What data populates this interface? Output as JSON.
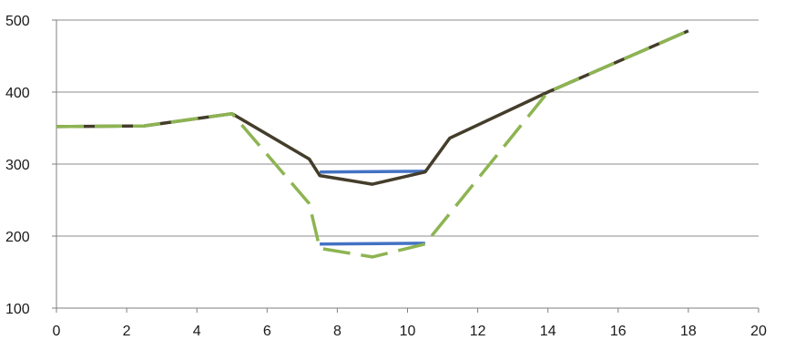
{
  "chart_data": {
    "type": "line",
    "title": "",
    "xlabel": "",
    "ylabel": "",
    "xlim": [
      0,
      20
    ],
    "ylim": [
      100,
      500
    ],
    "x_ticks": [
      "0",
      "2",
      "4",
      "6",
      "8",
      "10",
      "12",
      "14",
      "16",
      "18",
      "20"
    ],
    "y_ticks": [
      "100",
      "200",
      "300",
      "400",
      "500"
    ],
    "grid": "horizontal",
    "legend": "none",
    "series": [
      {
        "color": "#4472c4",
        "style": "solid",
        "points": [
          [
            7.5,
            289
          ],
          [
            10.5,
            290
          ]
        ]
      },
      {
        "color": "#4472c4",
        "style": "solid",
        "points": [
          [
            7.5,
            189
          ],
          [
            10.5,
            190
          ]
        ]
      },
      {
        "color": "#443d2b",
        "style": "solid",
        "points": [
          [
            0,
            352
          ],
          [
            2.5,
            353
          ],
          [
            5,
            370
          ],
          [
            7.2,
            307
          ],
          [
            7.5,
            284
          ],
          [
            9,
            272
          ],
          [
            10.5,
            289
          ],
          [
            11.2,
            336
          ],
          [
            14,
            400
          ],
          [
            18,
            485
          ]
        ]
      },
      {
        "color": "#8db451",
        "style": "dashed",
        "points": [
          [
            0,
            352
          ],
          [
            2.5,
            353
          ],
          [
            5,
            370
          ],
          [
            7.2,
            245
          ],
          [
            7.5,
            183
          ],
          [
            9,
            171
          ],
          [
            10.5,
            189
          ],
          [
            14,
            400
          ],
          [
            18,
            485
          ]
        ]
      }
    ]
  }
}
